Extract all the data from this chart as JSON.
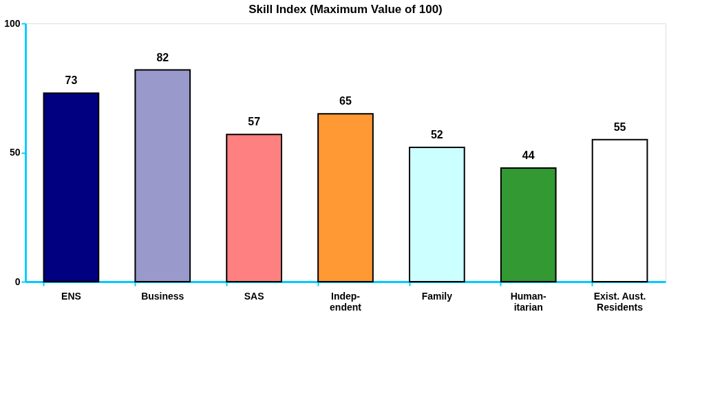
{
  "chart_data": {
    "type": "bar",
    "title": "Skill Index (Maximum Value of 100)",
    "categories": [
      "ENS",
      "Business",
      "SAS",
      "Indep-\nendent",
      "Family",
      "Human-\nitarian",
      "Exist. Aust.\nResidents"
    ],
    "values": [
      73,
      82,
      57,
      65,
      52,
      44,
      55
    ],
    "colors": [
      "#000080",
      "#9999cc",
      "#ff8080",
      "#ff9933",
      "#ccffff",
      "#339933",
      "#ffffff"
    ],
    "ylim": [
      0,
      100
    ],
    "yticks": [
      0,
      50,
      100
    ],
    "grid": false,
    "data_labels": true
  }
}
